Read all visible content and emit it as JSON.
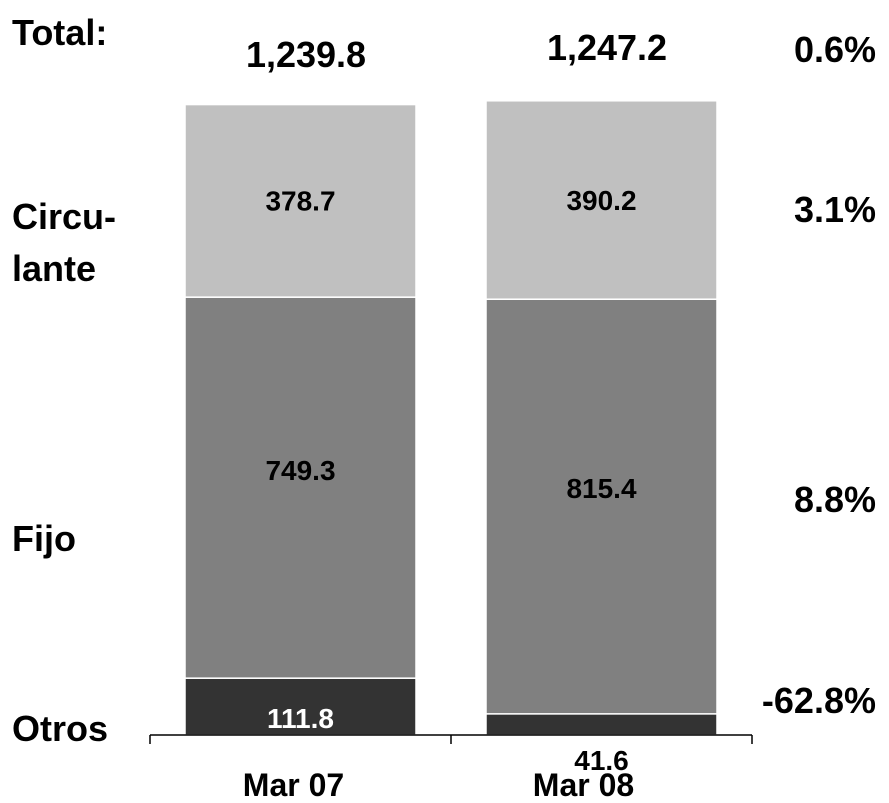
{
  "chart_data": {
    "type": "bar",
    "stacked": true,
    "categories": [
      "Mar 07",
      "Mar 08"
    ],
    "series": [
      {
        "name": "Otros",
        "values": [
          111.8,
          41.6
        ],
        "value_labels": [
          "111.8",
          "41.6"
        ],
        "change": "-62.8%",
        "color": "#333333",
        "label_color": "#ffffff"
      },
      {
        "name": "Fijo",
        "values": [
          749.3,
          815.4
        ],
        "value_labels": [
          "749.3",
          "815.4"
        ],
        "change": "8.8%",
        "color": "#808080",
        "label_color": "#000000"
      },
      {
        "name": "Circulante",
        "values": [
          378.7,
          390.2
        ],
        "value_labels": [
          "378.7",
          "390.2"
        ],
        "change": "3.1%",
        "color": "#c0c0c0",
        "label_color": "#000000"
      }
    ],
    "totals": {
      "label": "Total:",
      "values": [
        1239.8,
        1247.2
      ],
      "value_labels": [
        "1,239.8",
        "1,247.2"
      ],
      "change": "0.6%"
    },
    "row_labels": {
      "circulante": [
        "Circu-",
        "lante"
      ],
      "fijo": "Fijo",
      "otros": "Otros"
    },
    "grid": false,
    "legend": "none"
  }
}
